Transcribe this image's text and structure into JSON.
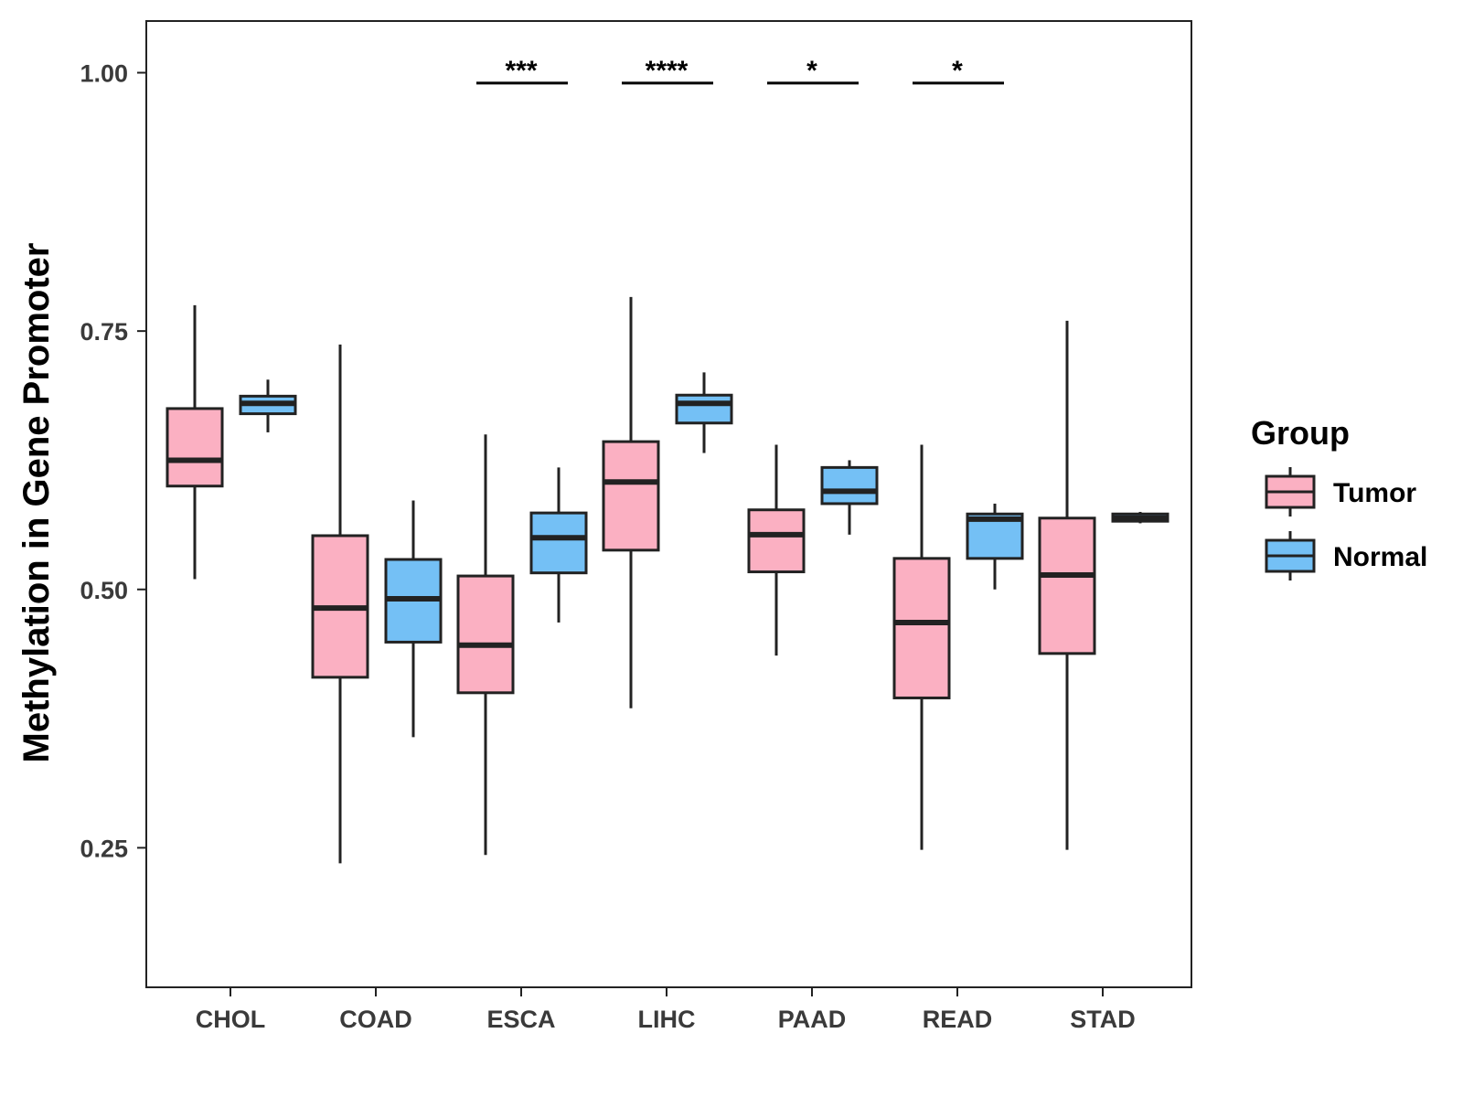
{
  "chart_data": {
    "type": "boxplot",
    "title": "",
    "xlabel": "",
    "ylabel": "Methylation in Gene Promoter",
    "ylim": [
      0.115,
      1.05
    ],
    "yticks": [
      0.25,
      0.5,
      0.75,
      1.0
    ],
    "ytick_labels": [
      "0.25",
      "0.50",
      "0.75",
      "1.00"
    ],
    "categories": [
      "CHOL",
      "COAD",
      "ESCA",
      "LIHC",
      "PAAD",
      "READ",
      "STAD"
    ],
    "legend": {
      "title": "Group",
      "position": "right",
      "entries": [
        "Tumor",
        "Normal"
      ]
    },
    "colors": {
      "Tumor": "#fbb0c2",
      "Normal": "#74c0f5",
      "stroke": "#222222"
    },
    "series": [
      {
        "name": "Tumor",
        "boxes": [
          {
            "category": "CHOL",
            "min": 0.51,
            "q1": 0.6,
            "median": 0.625,
            "q3": 0.675,
            "max": 0.775
          },
          {
            "category": "COAD",
            "min": 0.235,
            "q1": 0.415,
            "median": 0.482,
            "q3": 0.552,
            "max": 0.737
          },
          {
            "category": "ESCA",
            "min": 0.243,
            "q1": 0.4,
            "median": 0.446,
            "q3": 0.513,
            "max": 0.65
          },
          {
            "category": "LIHC",
            "min": 0.385,
            "q1": 0.538,
            "median": 0.604,
            "q3": 0.643,
            "max": 0.783
          },
          {
            "category": "PAAD",
            "min": 0.436,
            "q1": 0.517,
            "median": 0.553,
            "q3": 0.577,
            "max": 0.64
          },
          {
            "category": "READ",
            "min": 0.248,
            "q1": 0.395,
            "median": 0.468,
            "q3": 0.53,
            "max": 0.64
          },
          {
            "category": "STAD",
            "min": 0.248,
            "q1": 0.438,
            "median": 0.514,
            "q3": 0.569,
            "max": 0.76
          }
        ]
      },
      {
        "name": "Normal",
        "boxes": [
          {
            "category": "CHOL",
            "min": 0.652,
            "q1": 0.67,
            "median": 0.68,
            "q3": 0.687,
            "max": 0.703
          },
          {
            "category": "COAD",
            "min": 0.357,
            "q1": 0.449,
            "median": 0.491,
            "q3": 0.529,
            "max": 0.586
          },
          {
            "category": "ESCA",
            "min": 0.468,
            "q1": 0.516,
            "median": 0.55,
            "q3": 0.574,
            "max": 0.618
          },
          {
            "category": "LIHC",
            "min": 0.632,
            "q1": 0.661,
            "median": 0.68,
            "q3": 0.688,
            "max": 0.71
          },
          {
            "category": "PAAD",
            "min": 0.553,
            "q1": 0.583,
            "median": 0.595,
            "q3": 0.618,
            "max": 0.625
          },
          {
            "category": "READ",
            "min": 0.5,
            "q1": 0.53,
            "median": 0.568,
            "q3": 0.573,
            "max": 0.583
          },
          {
            "category": "STAD",
            "min": 0.564,
            "q1": 0.566,
            "median": 0.569,
            "q3": 0.573,
            "max": 0.575
          }
        ]
      }
    ],
    "significance": [
      {
        "category": "ESCA",
        "label": "***",
        "y": 0.99
      },
      {
        "category": "LIHC",
        "label": "****",
        "y": 0.99
      },
      {
        "category": "PAAD",
        "label": "*",
        "y": 0.99
      },
      {
        "category": "READ",
        "label": "*",
        "y": 0.99
      }
    ]
  }
}
